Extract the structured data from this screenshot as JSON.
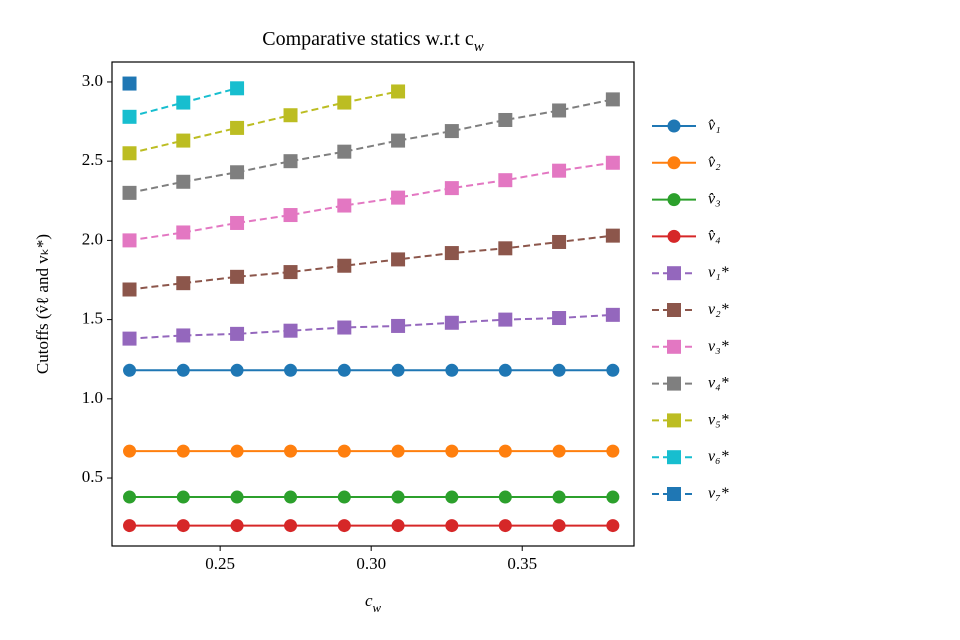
{
  "chart_data": {
    "type": "line",
    "title": "Comparative statics w.r.t c_w",
    "xlabel": "c_w",
    "ylabel": "Cutoffs (v̂ℓ and vₖ*)",
    "x": [
      0.22,
      0.2378,
      0.2556,
      0.2733,
      0.2911,
      0.3089,
      0.3267,
      0.3444,
      0.3622,
      0.38
    ],
    "xlim": [
      0.2142,
      0.387
    ],
    "xticks": [
      0.25,
      0.3,
      0.35
    ],
    "xtick_labels": [
      "0.25",
      "0.30",
      "0.35"
    ],
    "ylim": [
      0.071,
      3.126
    ],
    "yticks": [
      0.5,
      1.0,
      1.5,
      2.0,
      2.5,
      3.0
    ],
    "ytick_labels": [
      "0.5",
      "1.0",
      "1.5",
      "2.0",
      "2.5",
      "3.0"
    ],
    "legend": "outside-right",
    "series": [
      {
        "name": "v̂₁",
        "color": "#1f77b4",
        "marker": "circle",
        "dash": false,
        "values": [
          1.18,
          1.18,
          1.18,
          1.18,
          1.18,
          1.18,
          1.18,
          1.18,
          1.18,
          1.18
        ]
      },
      {
        "name": "v̂₂",
        "color": "#ff7f0e",
        "marker": "circle",
        "dash": false,
        "values": [
          0.67,
          0.67,
          0.67,
          0.67,
          0.67,
          0.67,
          0.67,
          0.67,
          0.67,
          0.67
        ]
      },
      {
        "name": "v̂₃",
        "color": "#2ca02c",
        "marker": "circle",
        "dash": false,
        "values": [
          0.38,
          0.38,
          0.38,
          0.38,
          0.38,
          0.38,
          0.38,
          0.38,
          0.38,
          0.38
        ]
      },
      {
        "name": "v̂₄",
        "color": "#d62728",
        "marker": "circle",
        "dash": false,
        "values": [
          0.2,
          0.2,
          0.2,
          0.2,
          0.2,
          0.2,
          0.2,
          0.2,
          0.2,
          0.2
        ]
      },
      {
        "name": "v₁*",
        "color": "#9467bd",
        "marker": "square",
        "dash": true,
        "values": [
          1.38,
          1.4,
          1.41,
          1.43,
          1.45,
          1.46,
          1.48,
          1.5,
          1.51,
          1.53
        ]
      },
      {
        "name": "v₂*",
        "color": "#8c564b",
        "marker": "square",
        "dash": true,
        "values": [
          1.69,
          1.73,
          1.77,
          1.8,
          1.84,
          1.88,
          1.92,
          1.95,
          1.99,
          2.03
        ]
      },
      {
        "name": "v₃*",
        "color": "#e377c2",
        "marker": "square",
        "dash": true,
        "values": [
          2.0,
          2.05,
          2.11,
          2.16,
          2.22,
          2.27,
          2.33,
          2.38,
          2.44,
          2.49
        ]
      },
      {
        "name": "v₄*",
        "color": "#7f7f7f",
        "marker": "square",
        "dash": true,
        "values": [
          2.3,
          2.37,
          2.43,
          2.5,
          2.56,
          2.63,
          2.69,
          2.76,
          2.82,
          2.89
        ]
      },
      {
        "name": "v₅*",
        "color": "#bcbd22",
        "marker": "square",
        "dash": true,
        "values": [
          2.55,
          2.63,
          2.71,
          2.79,
          2.87,
          2.94,
          null,
          null,
          null,
          null
        ]
      },
      {
        "name": "v₆*",
        "color": "#17becf",
        "marker": "square",
        "dash": true,
        "values": [
          2.78,
          2.87,
          2.96,
          null,
          null,
          null,
          null,
          null,
          null,
          null
        ]
      },
      {
        "name": "v₇*",
        "color": "#1f77b4",
        "marker": "square",
        "dash": true,
        "values": [
          2.99,
          null,
          null,
          null,
          null,
          null,
          null,
          null,
          null,
          null
        ]
      }
    ]
  }
}
